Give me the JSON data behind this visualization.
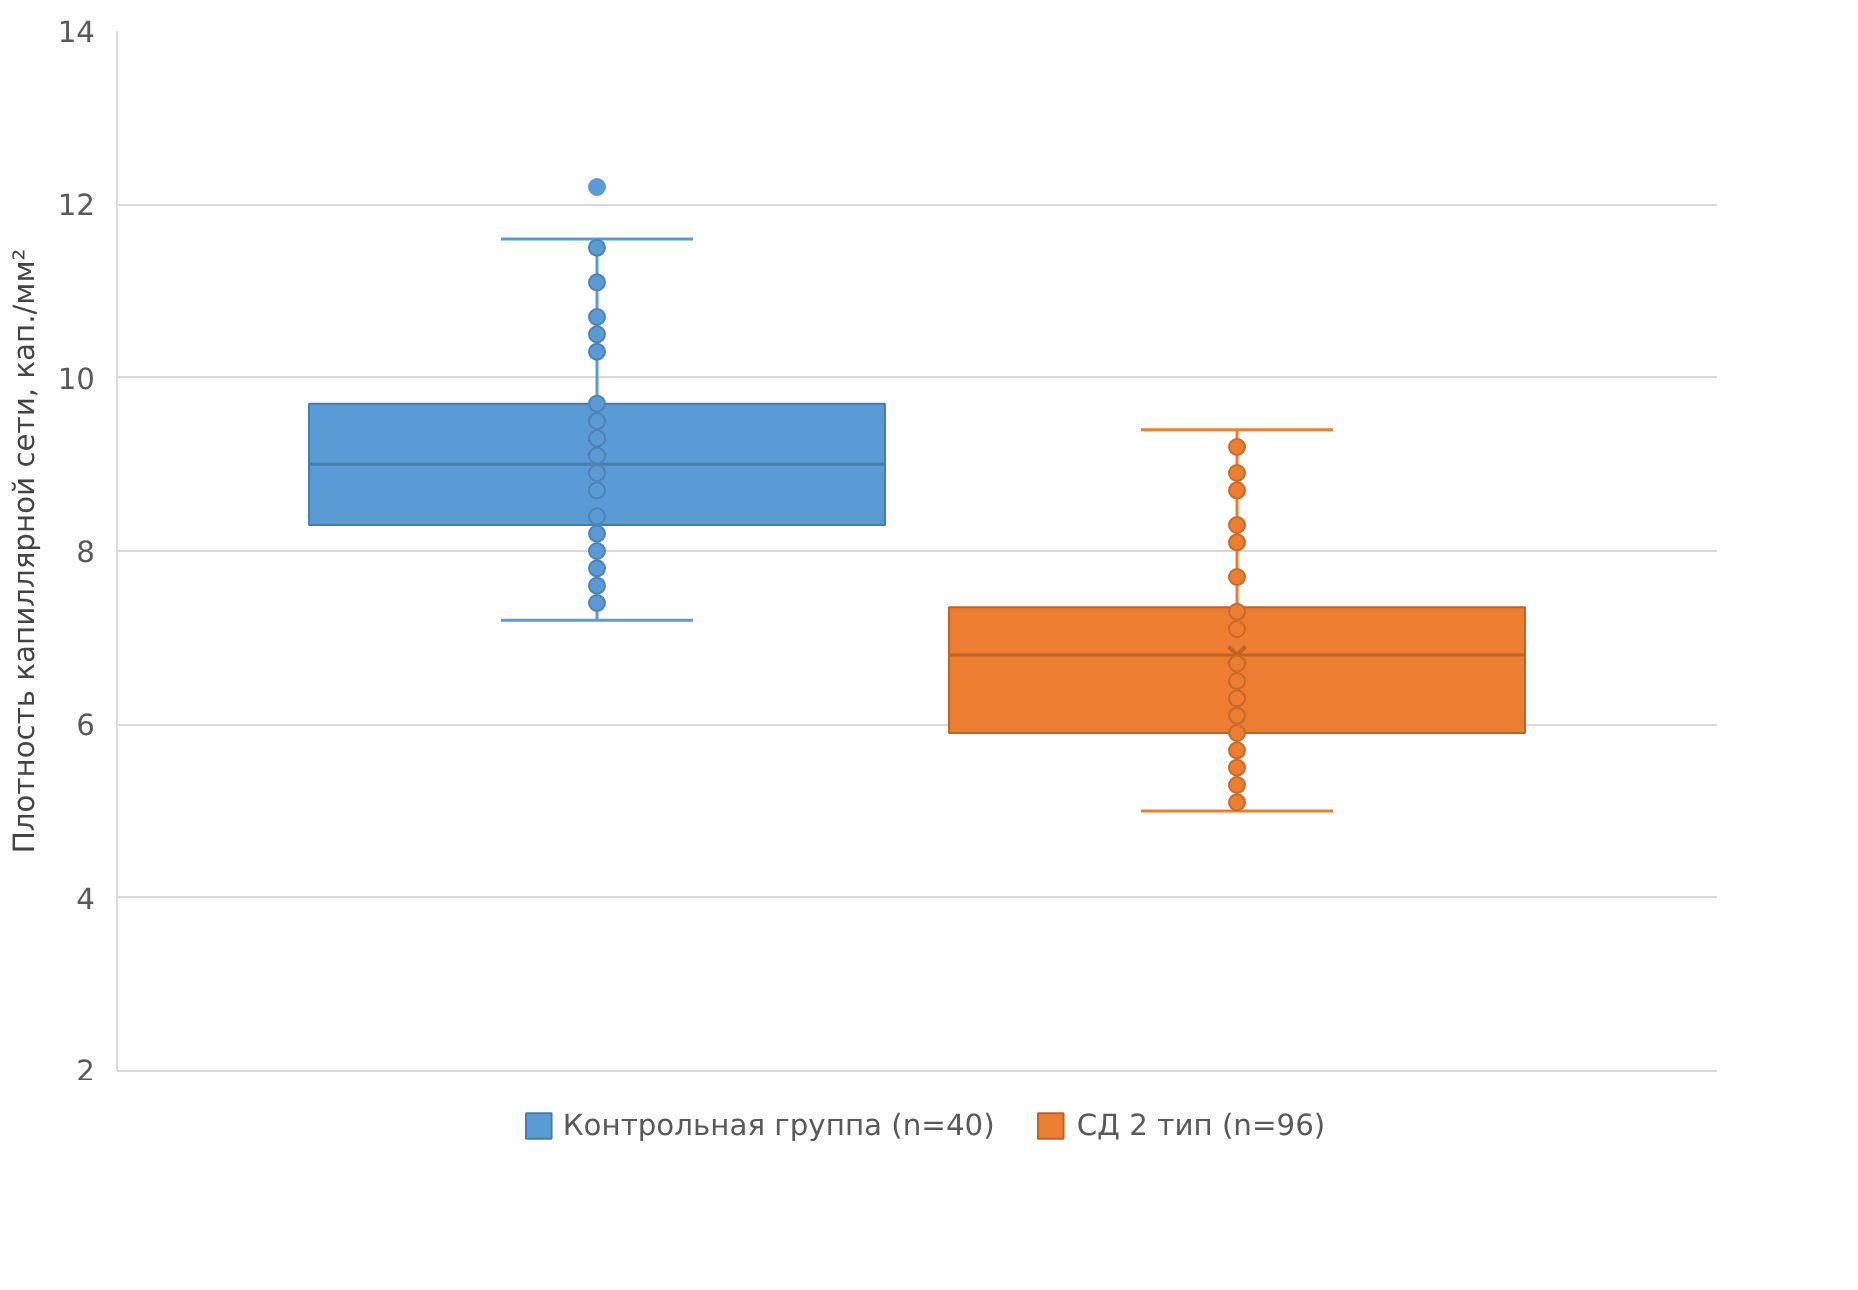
{
  "chart_data": {
    "type": "box",
    "ylabel": "Плотность капиллярной сети, кап./мм²",
    "categories": [
      null
    ],
    "ylim": [
      2,
      14
    ],
    "yticks": [
      2,
      4,
      6,
      8,
      10,
      12,
      14
    ],
    "grid": "y",
    "legend": "bottom",
    "series": [
      {
        "type": "box",
        "name": "Контрольная группа (n=40)",
        "color": "#5b9bd5",
        "boxes": [
          {
            "low": 7.2,
            "q1": 8.3,
            "median": 9.0,
            "q3": 9.7,
            "high": 11.6,
            "mean": 9.2,
            "outliers": [
              12.2
            ]
          }
        ]
      },
      {
        "type": "box",
        "name": "СД 2 тип (n=96)",
        "color": "#ed7d31",
        "boxes": [
          {
            "low": 5.0,
            "q1": 5.9,
            "median": 6.8,
            "q3": 7.35,
            "high": 9.4,
            "mean": 6.8
          }
        ]
      },
      {
        "type": "scatter",
        "color": "#5b9bd5",
        "x": [
          null,
          null,
          null,
          null,
          null,
          null,
          null,
          null,
          null,
          null,
          null,
          null,
          null,
          null,
          null,
          null,
          null
        ],
        "values": [
          11.5,
          11.1,
          10.7,
          10.5,
          10.3,
          9.7,
          9.5,
          9.3,
          9.1,
          8.9,
          8.7,
          8.4,
          8.2,
          8.0,
          7.8,
          7.6,
          7.4
        ]
      },
      {
        "type": "scatter",
        "color": "#ed7d31",
        "x": [
          null,
          null,
          null,
          null,
          null,
          null,
          null,
          null,
          null,
          null,
          null,
          null,
          null,
          null,
          null,
          null,
          null
        ],
        "values": [
          9.2,
          8.9,
          8.7,
          8.3,
          8.1,
          7.7,
          7.3,
          7.1,
          6.7,
          6.5,
          6.3,
          6.1,
          5.9,
          5.7,
          5.5,
          5.3,
          5.1
        ]
      }
    ]
  }
}
